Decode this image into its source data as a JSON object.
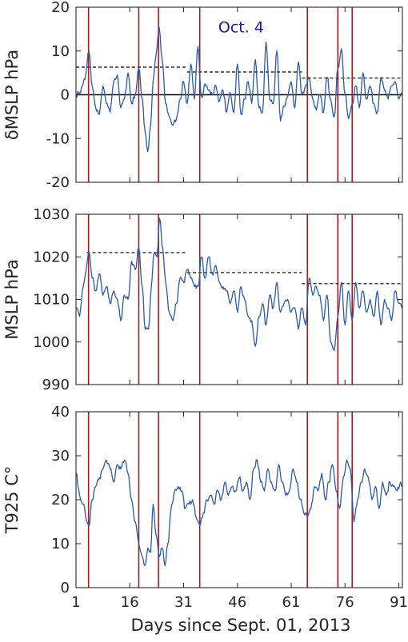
{
  "chart_data": [
    {
      "type": "line",
      "ylabel": "δMSLP hPa",
      "ylim": [
        -20,
        20
      ],
      "yticks": [
        "-20",
        "-10",
        "0",
        "10",
        "20"
      ],
      "xlim": [
        1,
        92
      ],
      "zero_line": true,
      "annotation": {
        "text": "Oct. 4",
        "x": 38,
        "y": 15.5
      },
      "event_days": [
        4.5,
        18.5,
        24,
        35.5,
        65.5,
        74,
        78
      ],
      "thresholds": [
        {
          "x0": 1,
          "x1": 32,
          "y": 6.3
        },
        {
          "x0": 32,
          "x1": 64,
          "y": 5.2
        },
        {
          "x0": 64,
          "x1": 92,
          "y": 3.8
        }
      ],
      "keypoints": [
        [
          1,
          0
        ],
        [
          2,
          0.5
        ],
        [
          3.5,
          3.5
        ],
        [
          4.6,
          10
        ],
        [
          5.5,
          2
        ],
        [
          6.5,
          -3
        ],
        [
          7.5,
          -4.5
        ],
        [
          8.5,
          2
        ],
        [
          9.5,
          -2
        ],
        [
          10.5,
          -4
        ],
        [
          11.5,
          3
        ],
        [
          12.5,
          4.5
        ],
        [
          13.5,
          -3
        ],
        [
          14.5,
          -1
        ],
        [
          15.5,
          5
        ],
        [
          16.5,
          -2
        ],
        [
          17.5,
          0
        ],
        [
          18.5,
          6
        ],
        [
          19.5,
          -1
        ],
        [
          20.2,
          -8
        ],
        [
          21,
          -13
        ],
        [
          21.8,
          -7
        ],
        [
          22.5,
          3
        ],
        [
          23.3,
          9
        ],
        [
          24.2,
          15.4
        ],
        [
          25,
          8
        ],
        [
          26,
          -2
        ],
        [
          27,
          -5
        ],
        [
          28,
          -7
        ],
        [
          29,
          -5.5
        ],
        [
          30,
          -1
        ],
        [
          31,
          3
        ],
        [
          32,
          -2
        ],
        [
          33,
          7
        ],
        [
          34,
          -1
        ],
        [
          35,
          11
        ],
        [
          36,
          -0.5
        ],
        [
          37,
          2.5
        ],
        [
          38,
          1
        ],
        [
          39,
          0
        ],
        [
          40,
          2
        ],
        [
          41,
          -1.5
        ],
        [
          42,
          1
        ],
        [
          43,
          -4
        ],
        [
          44,
          0.5
        ],
        [
          45,
          -4
        ],
        [
          46,
          7
        ],
        [
          47,
          -4.5
        ],
        [
          48,
          -1
        ],
        [
          49,
          3
        ],
        [
          50,
          -2
        ],
        [
          51,
          8
        ],
        [
          52,
          -3
        ],
        [
          53,
          -4
        ],
        [
          54,
          12
        ],
        [
          55,
          -1
        ],
        [
          56,
          -2
        ],
        [
          57,
          10
        ],
        [
          58,
          -6
        ],
        [
          59,
          -2.5
        ],
        [
          60,
          -0.5
        ],
        [
          61,
          3
        ],
        [
          62,
          -3
        ],
        [
          63,
          7.5
        ],
        [
          64,
          0
        ],
        [
          65,
          2
        ],
        [
          66,
          4
        ],
        [
          67,
          -1
        ],
        [
          68,
          -3.5
        ],
        [
          69,
          0
        ],
        [
          70,
          -4
        ],
        [
          71,
          4
        ],
        [
          72,
          -1
        ],
        [
          73,
          -5
        ],
        [
          74,
          6
        ],
        [
          75,
          10.5
        ],
        [
          76,
          0
        ],
        [
          77,
          -5.5
        ],
        [
          78,
          -2
        ],
        [
          79,
          2
        ],
        [
          80,
          -3
        ],
        [
          81,
          5
        ],
        [
          82,
          -1
        ],
        [
          83,
          2
        ],
        [
          84,
          -2
        ],
        [
          85,
          -4
        ],
        [
          86,
          4
        ],
        [
          87,
          1
        ],
        [
          88,
          -1
        ],
        [
          89,
          2
        ],
        [
          90,
          3
        ],
        [
          91,
          -1
        ],
        [
          92,
          0.5
        ]
      ]
    },
    {
      "type": "line",
      "ylabel": "MSLP hPa",
      "ylim": [
        990,
        1030
      ],
      "yticks": [
        "990",
        "1000",
        "1010",
        "1020",
        "1030"
      ],
      "xlim": [
        1,
        92
      ],
      "event_days": [
        4.5,
        18.5,
        24,
        35.5,
        65.5,
        74,
        78
      ],
      "thresholds": [
        {
          "x0": 4,
          "x1": 32,
          "y": 1021
        },
        {
          "x0": 32,
          "x1": 64,
          "y": 1016.3
        },
        {
          "x0": 64,
          "x1": 92,
          "y": 1013.7
        }
      ],
      "keypoints": [
        [
          1,
          1008
        ],
        [
          2,
          1006
        ],
        [
          3,
          1013
        ],
        [
          4.6,
          1021
        ],
        [
          5.5,
          1015
        ],
        [
          6.5,
          1012
        ],
        [
          7.5,
          1016
        ],
        [
          8.5,
          1011
        ],
        [
          9.5,
          1013
        ],
        [
          10.5,
          1009
        ],
        [
          11.5,
          1012
        ],
        [
          12.5,
          1010
        ],
        [
          13.5,
          1005
        ],
        [
          14.5,
          1011
        ],
        [
          15.5,
          1010
        ],
        [
          16.5,
          1019
        ],
        [
          17.5,
          1017
        ],
        [
          18.5,
          1022
        ],
        [
          19.5,
          1013
        ],
        [
          20.3,
          1003
        ],
        [
          21.2,
          1003
        ],
        [
          22,
          1013
        ],
        [
          22.8,
          1021
        ],
        [
          23.6,
          1020
        ],
        [
          24.3,
          1029
        ],
        [
          25.2,
          1022
        ],
        [
          26,
          1014
        ],
        [
          27,
          1007
        ],
        [
          28,
          1005
        ],
        [
          29,
          1009
        ],
        [
          30,
          1015
        ],
        [
          31,
          1014
        ],
        [
          32,
          1017
        ],
        [
          33,
          1015
        ],
        [
          34,
          1013
        ],
        [
          35,
          1013
        ],
        [
          36,
          1020
        ],
        [
          37,
          1015
        ],
        [
          38,
          1020
        ],
        [
          39,
          1016
        ],
        [
          40,
          1018
        ],
        [
          41,
          1014
        ],
        [
          42,
          1013
        ],
        [
          43,
          1012
        ],
        [
          44,
          1009
        ],
        [
          45,
          1012
        ],
        [
          46,
          1007
        ],
        [
          47,
          1013
        ],
        [
          48,
          1010
        ],
        [
          49,
          1006
        ],
        [
          50,
          1005
        ],
        [
          51,
          999
        ],
        [
          52,
          1006
        ],
        [
          53,
          1009
        ],
        [
          54,
          1004
        ],
        [
          55,
          1011
        ],
        [
          56,
          1008
        ],
        [
          57,
          1014
        ],
        [
          58,
          1007
        ],
        [
          59,
          1009
        ],
        [
          60,
          1010
        ],
        [
          61,
          1007
        ],
        [
          62,
          1008
        ],
        [
          63,
          1003
        ],
        [
          64,
          1008
        ],
        [
          65,
          1004
        ],
        [
          66,
          1015
        ],
        [
          67,
          1011
        ],
        [
          68,
          1013
        ],
        [
          69,
          1011
        ],
        [
          70,
          1005
        ],
        [
          71,
          1011
        ],
        [
          72,
          1000
        ],
        [
          73,
          998
        ],
        [
          74,
          1006
        ],
        [
          75,
          1014
        ],
        [
          76,
          1004
        ],
        [
          77,
          1012
        ],
        [
          78,
          1005
        ],
        [
          79,
          1014
        ],
        [
          80,
          1008
        ],
        [
          81,
          1012
        ],
        [
          82,
          1007
        ],
        [
          83,
          1010
        ],
        [
          84,
          1006
        ],
        [
          85,
          1012
        ],
        [
          86,
          1004
        ],
        [
          87,
          1010
        ],
        [
          88,
          1008
        ],
        [
          89,
          1005
        ],
        [
          90,
          1012
        ],
        [
          91,
          1009
        ],
        [
          92,
          1008
        ]
      ]
    },
    {
      "type": "line",
      "ylabel": "T925 C°",
      "xlabel": "Days since Sept. 01, 2013",
      "ylim": [
        0,
        40
      ],
      "yticks": [
        "0",
        "10",
        "20",
        "30",
        "40"
      ],
      "xlim": [
        1,
        92
      ],
      "xticks": [
        1,
        16,
        31,
        46,
        61,
        76,
        91
      ],
      "xtick_labels": [
        "1",
        "16",
        "31",
        "46",
        "61",
        "76",
        "91"
      ],
      "event_days": [
        4.5,
        18.5,
        24,
        35.5,
        65.5,
        74,
        78
      ],
      "keypoints": [
        [
          1,
          26
        ],
        [
          2,
          21
        ],
        [
          3,
          19
        ],
        [
          4,
          15
        ],
        [
          4.6,
          14
        ],
        [
          5.5,
          20
        ],
        [
          6.5,
          23
        ],
        [
          7.5,
          25
        ],
        [
          8.5,
          27
        ],
        [
          9.5,
          29
        ],
        [
          10.5,
          27
        ],
        [
          11.5,
          24
        ],
        [
          12.5,
          28
        ],
        [
          13.5,
          27
        ],
        [
          14.5,
          29
        ],
        [
          15.5,
          26
        ],
        [
          16.5,
          20
        ],
        [
          17.5,
          15
        ],
        [
          18.5,
          10
        ],
        [
          19.5,
          7
        ],
        [
          20.2,
          5
        ],
        [
          21,
          9
        ],
        [
          21.8,
          8
        ],
        [
          22.5,
          19
        ],
        [
          23.3,
          12
        ],
        [
          24.2,
          7
        ],
        [
          25,
          9
        ],
        [
          25.8,
          5
        ],
        [
          26.6,
          10
        ],
        [
          27.5,
          18
        ],
        [
          28.5,
          22
        ],
        [
          29.5,
          23
        ],
        [
          30.5,
          22
        ],
        [
          31.5,
          18
        ],
        [
          32.5,
          19
        ],
        [
          33.5,
          20
        ],
        [
          34.5,
          16
        ],
        [
          35.5,
          14
        ],
        [
          36.5,
          17
        ],
        [
          37.5,
          20
        ],
        [
          38.5,
          21
        ],
        [
          39.5,
          19
        ],
        [
          40.5,
          22
        ],
        [
          41.5,
          20
        ],
        [
          42.5,
          24
        ],
        [
          43.5,
          21
        ],
        [
          44.5,
          23
        ],
        [
          45.5,
          22
        ],
        [
          46.5,
          25
        ],
        [
          47.5,
          22
        ],
        [
          48.5,
          24
        ],
        [
          49.5,
          20
        ],
        [
          50.5,
          27
        ],
        [
          51.5,
          29
        ],
        [
          52.5,
          24
        ],
        [
          53.5,
          22
        ],
        [
          54.5,
          27
        ],
        [
          55.5,
          24
        ],
        [
          56.5,
          22
        ],
        [
          57.5,
          28
        ],
        [
          58.5,
          24
        ],
        [
          59.5,
          21
        ],
        [
          60.5,
          22
        ],
        [
          61.5,
          27
        ],
        [
          62.5,
          24
        ],
        [
          63.5,
          20
        ],
        [
          64.5,
          17
        ],
        [
          65.5,
          16
        ],
        [
          66.5,
          18
        ],
        [
          67.5,
          23
        ],
        [
          68.5,
          22
        ],
        [
          69.5,
          26
        ],
        [
          70.5,
          20
        ],
        [
          71.5,
          24
        ],
        [
          72.5,
          28
        ],
        [
          73.5,
          22
        ],
        [
          74.5,
          18
        ],
        [
          75.5,
          25
        ],
        [
          76.5,
          29
        ],
        [
          77.5,
          27
        ],
        [
          78.5,
          15
        ],
        [
          79.5,
          20
        ],
        [
          80.5,
          24
        ],
        [
          81.5,
          27
        ],
        [
          82.5,
          25
        ],
        [
          83.5,
          20
        ],
        [
          84.5,
          23
        ],
        [
          85.5,
          18
        ],
        [
          86.5,
          24
        ],
        [
          87.5,
          21
        ],
        [
          88.5,
          24
        ],
        [
          89.5,
          23
        ],
        [
          90.5,
          22
        ],
        [
          91.5,
          24
        ],
        [
          92,
          23
        ]
      ]
    }
  ],
  "colors": {
    "series": "#2b5aa8",
    "event_lines": "#a31f1f",
    "thresholds": "#000000",
    "zero_line": "#000000",
    "annotation": "#1a1aa6"
  }
}
